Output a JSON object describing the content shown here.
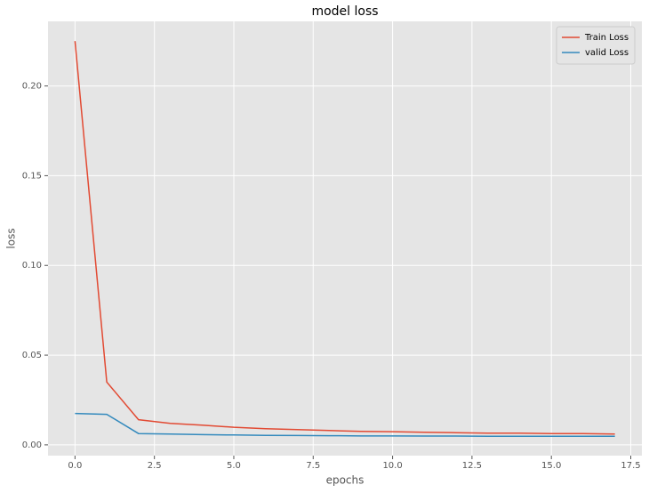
{
  "chart_data": {
    "type": "line",
    "title": "model loss",
    "x_label": "epochs",
    "y_label": "loss",
    "x": [
      0,
      1,
      2,
      3,
      4,
      5,
      6,
      7,
      8,
      9,
      10,
      11,
      12,
      13,
      14,
      15,
      16,
      17
    ],
    "series": [
      {
        "name": "Train Loss",
        "color": "#E24A33",
        "values": [
          0.225,
          0.035,
          0.014,
          0.012,
          0.011,
          0.0098,
          0.009,
          0.0085,
          0.008,
          0.0075,
          0.0073,
          0.007,
          0.0068,
          0.0065,
          0.0065,
          0.0063,
          0.0063,
          0.006
        ]
      },
      {
        "name": "valid Loss",
        "color": "#348ABD",
        "values": [
          0.0175,
          0.017,
          0.0063,
          0.006,
          0.0057,
          0.0055,
          0.0053,
          0.0052,
          0.0051,
          0.005,
          0.005,
          0.0049,
          0.0049,
          0.0048,
          0.0048,
          0.0048,
          0.0048,
          0.0048
        ]
      }
    ],
    "xlim": [
      -0.85,
      17.85
    ],
    "xticks": [
      {
        "value": 0,
        "label": "0.0"
      },
      2.5,
      {
        "value": 5,
        "label": "5.0"
      },
      7.5,
      {
        "value": 10,
        "label": "10.0"
      },
      12.5,
      {
        "value": 15,
        "label": "15.0"
      },
      17.5
    ],
    "ylim": [
      -0.006,
      0.236
    ],
    "yticks": [
      {
        "value": 0,
        "label": "0.00"
      },
      {
        "value": 0.05,
        "label": "0.05"
      },
      {
        "value": 0.1,
        "label": "0.10"
      },
      {
        "value": 0.15,
        "label": "0.15"
      },
      {
        "value": 0.2,
        "label": "0.20"
      }
    ],
    "grid": true,
    "legend": "upper right"
  }
}
